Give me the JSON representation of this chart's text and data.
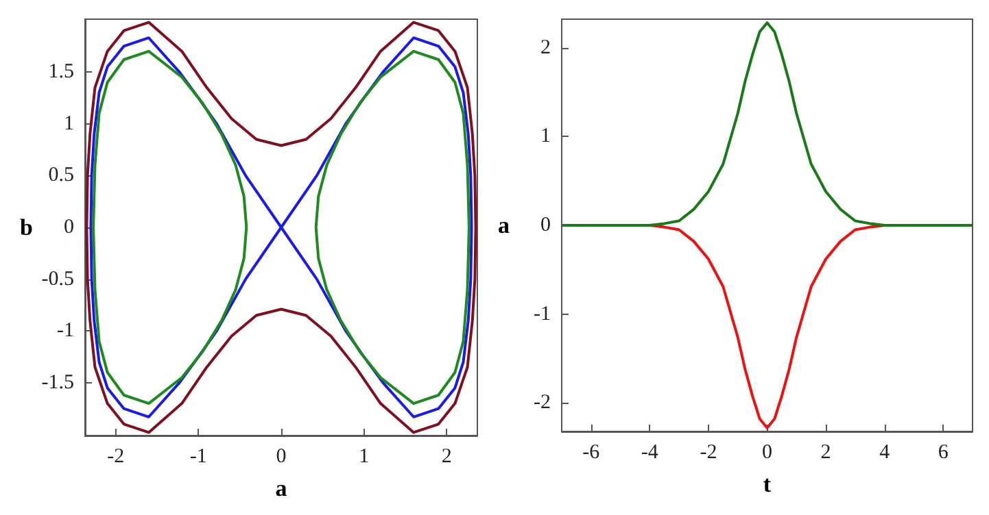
{
  "chart_data": [
    {
      "type": "line",
      "xlabel": "a",
      "ylabel": "b",
      "xlim": [
        -2.37,
        2.37
      ],
      "ylim": [
        -2.01,
        2.01
      ],
      "xticks": [
        -2,
        -1,
        0,
        1,
        2
      ],
      "yticks": [
        -1.5,
        -1,
        -0.5,
        0,
        0.5,
        1,
        1.5
      ],
      "marker": "none",
      "series": [
        {
          "color": "#7f1020",
          "x": [
            -2.35,
            -2.34,
            -2.31,
            -2.25,
            -2.1,
            -1.9,
            -1.6,
            -1.2,
            -0.9,
            -0.6,
            -0.3,
            0,
            0.3,
            0.6,
            0.9,
            1.2,
            1.6,
            1.9,
            2.1,
            2.25,
            2.31,
            2.34,
            2.35,
            0,
            -2.35,
            -2.34,
            -2.31,
            -2.25,
            -2.1,
            -1.9,
            -1.6,
            -1.2,
            -0.9,
            -0.6,
            -0.3,
            0,
            0.3,
            0.6,
            0.9,
            1.2,
            1.6,
            1.9,
            2.1,
            2.25,
            2.31,
            2.34,
            2.35
          ],
          "values": [
            0,
            0.5,
            0.9,
            1.35,
            1.7,
            1.9,
            1.98,
            1.7,
            1.35,
            1.05,
            0.85,
            0.79,
            0.85,
            1.05,
            1.35,
            1.7,
            1.98,
            1.9,
            1.7,
            1.35,
            0.9,
            0.5,
            0,
            null,
            0,
            -0.5,
            -0.9,
            -1.35,
            -1.7,
            -1.9,
            -1.98,
            -1.7,
            -1.35,
            -1.05,
            -0.85,
            -0.79,
            -0.85,
            -1.05,
            -1.35,
            -1.7,
            -1.98,
            -1.9,
            -1.7,
            -1.35,
            -0.9,
            -0.5,
            0
          ]
        },
        {
          "color": "#1a1aee",
          "x": [
            -2.3,
            -2.29,
            -2.26,
            -2.2,
            -2.1,
            -1.9,
            -1.6,
            -1.23,
            -1.0,
            -0.78,
            -0.43,
            0,
            0.43,
            0.78,
            1.0,
            1.23,
            1.6,
            1.9,
            2.1,
            2.2,
            2.26,
            2.29,
            2.3,
            0,
            -2.3,
            -2.29,
            -2.26,
            -2.2,
            -2.1,
            -1.9,
            -1.6,
            -1.23,
            -1.0,
            -0.78,
            -0.43,
            0,
            0.43,
            0.78,
            1.0,
            1.23,
            1.6,
            1.9,
            2.1,
            2.2,
            2.26,
            2.29,
            2.3
          ],
          "values": [
            0,
            0.5,
            0.9,
            1.3,
            1.55,
            1.75,
            1.83,
            1.5,
            1.25,
            1.0,
            0.5,
            0,
            0.5,
            1.0,
            1.25,
            1.5,
            1.83,
            1.75,
            1.55,
            1.3,
            0.9,
            0.5,
            0,
            null,
            0,
            -0.5,
            -0.9,
            -1.3,
            -1.55,
            -1.75,
            -1.83,
            -1.5,
            -1.25,
            -1.0,
            -0.5,
            0,
            -0.5,
            -1.0,
            -1.25,
            -1.5,
            -1.83,
            -1.75,
            -1.55,
            -1.3,
            -0.9,
            -0.5,
            0
          ]
        },
        {
          "color": "#1f8a1f",
          "x": [
            0.42,
            0.45,
            0.55,
            0.72,
            0.95,
            1.2,
            1.6,
            1.9,
            2.1,
            2.2,
            2.25,
            2.27,
            1.3,
            0.42,
            0.45,
            0.55,
            0.72,
            0.95,
            1.2,
            1.6,
            1.9,
            2.1,
            2.2,
            2.25,
            2.27
          ],
          "values": [
            0,
            0.3,
            0.6,
            0.9,
            1.2,
            1.45,
            1.7,
            1.62,
            1.4,
            1.1,
            0.6,
            0,
            null,
            0,
            -0.3,
            -0.6,
            -0.9,
            -1.2,
            -1.45,
            -1.7,
            -1.62,
            -1.4,
            -1.1,
            -0.6,
            0
          ]
        },
        {
          "color": "#1f8a1f",
          "x": [
            -2.27,
            -2.25,
            -2.2,
            -2.1,
            -1.9,
            -1.6,
            -1.2,
            -0.95,
            -0.72,
            -0.55,
            -0.45,
            -0.42,
            -1.3,
            -2.27,
            -2.25,
            -2.2,
            -2.1,
            -1.9,
            -1.6,
            -1.2,
            -0.95,
            -0.72,
            -0.55,
            -0.45,
            -0.42
          ],
          "values": [
            0,
            0.6,
            1.1,
            1.4,
            1.62,
            1.7,
            1.45,
            1.2,
            0.9,
            0.6,
            0.3,
            0,
            null,
            0,
            -0.6,
            -1.1,
            -1.4,
            -1.62,
            -1.7,
            -1.45,
            -1.2,
            -0.9,
            -0.6,
            -0.3,
            0
          ]
        }
      ]
    },
    {
      "type": "line",
      "xlabel": "t",
      "ylabel": "a",
      "xlim": [
        -7,
        7
      ],
      "ylim": [
        -2.32,
        2.32
      ],
      "xticks": [
        -6,
        -4,
        -2,
        0,
        2,
        4,
        6
      ],
      "yticks": [
        -2,
        -1,
        0,
        1,
        2
      ],
      "marker": "none",
      "series": [
        {
          "color": "#ee1111",
          "x": [
            -5,
            -4,
            -3.5,
            -3,
            -2.5,
            -2,
            -1.5,
            -1,
            -0.75,
            -0.5,
            -0.25,
            0,
            0.25,
            0.5,
            0.75,
            1,
            1.5,
            2,
            2.5,
            3,
            3.5,
            4,
            5
          ],
          "values": [
            0,
            0,
            -0.02,
            -0.05,
            -0.18,
            -0.38,
            -0.69,
            -1.26,
            -1.62,
            -1.92,
            -2.18,
            -2.28,
            -2.18,
            -1.92,
            -1.62,
            -1.26,
            -0.69,
            -0.38,
            -0.18,
            -0.05,
            -0.02,
            0,
            0
          ]
        },
        {
          "color": "#1a7a1a",
          "x": [
            -7,
            -6,
            -5,
            -4,
            -3.5,
            -3,
            -2.5,
            -2,
            -1.5,
            -1,
            -0.75,
            -0.5,
            -0.25,
            0,
            0.25,
            0.5,
            0.75,
            1,
            1.5,
            2,
            2.5,
            3,
            3.5,
            4,
            5,
            6,
            7
          ],
          "values": [
            0,
            0,
            0,
            0,
            0.02,
            0.05,
            0.18,
            0.38,
            0.69,
            1.26,
            1.62,
            1.92,
            2.18,
            2.28,
            2.18,
            1.92,
            1.62,
            1.26,
            0.69,
            0.38,
            0.18,
            0.05,
            0.02,
            0,
            0,
            0,
            0
          ]
        }
      ]
    }
  ]
}
